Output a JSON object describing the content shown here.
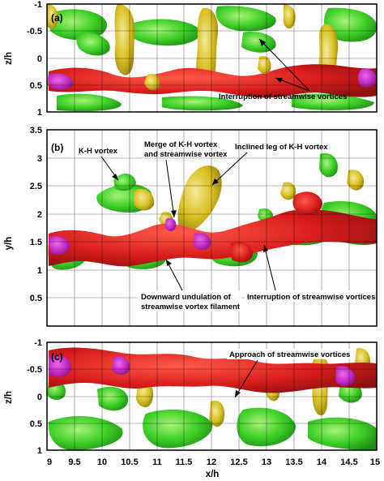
{
  "figure": {
    "xlabel": "x/h",
    "xticks": [
      "9",
      "9.5",
      "10",
      "10.5",
      "11",
      "11.5",
      "12",
      "12.5",
      "13",
      "13.5",
      "14",
      "14.5",
      "15"
    ],
    "colors": {
      "red": "#d91d1d",
      "magenta": "#c227c2",
      "green": "#3ecf27",
      "yellow": "#d8c021",
      "frame": "#000000",
      "grid": "#000000"
    }
  },
  "panels": [
    {
      "id": "a",
      "label": "(a)",
      "ylabel": "z/h",
      "yticks": [
        "-1",
        "-0.5",
        "0",
        "0.5",
        "1"
      ],
      "annotations": [
        {
          "text": "Interruption of streamwise vortices"
        }
      ]
    },
    {
      "id": "b",
      "label": "(b)",
      "ylabel": "y/h",
      "yticks": [
        "3.5",
        "3",
        "2.5",
        "2",
        "1.5",
        "1",
        "0.5"
      ],
      "annotations": [
        {
          "text": "K-H vortex"
        },
        {
          "text": "Merge of K-H vortex"
        },
        {
          "text": "and streamwise vortex"
        },
        {
          "text": "Inclined leg of K-H vortex"
        },
        {
          "text": "Downward undulation of"
        },
        {
          "text": "streamwise vortex filament"
        },
        {
          "text": "Interruption of streamwise vortices"
        }
      ]
    },
    {
      "id": "c",
      "label": "(c)",
      "ylabel": "z/h",
      "yticks": [
        "-1",
        "-0.5",
        "0",
        "0.5",
        "1"
      ],
      "annotations": [
        {
          "text": "Approach of streamwise vortices"
        }
      ]
    }
  ]
}
